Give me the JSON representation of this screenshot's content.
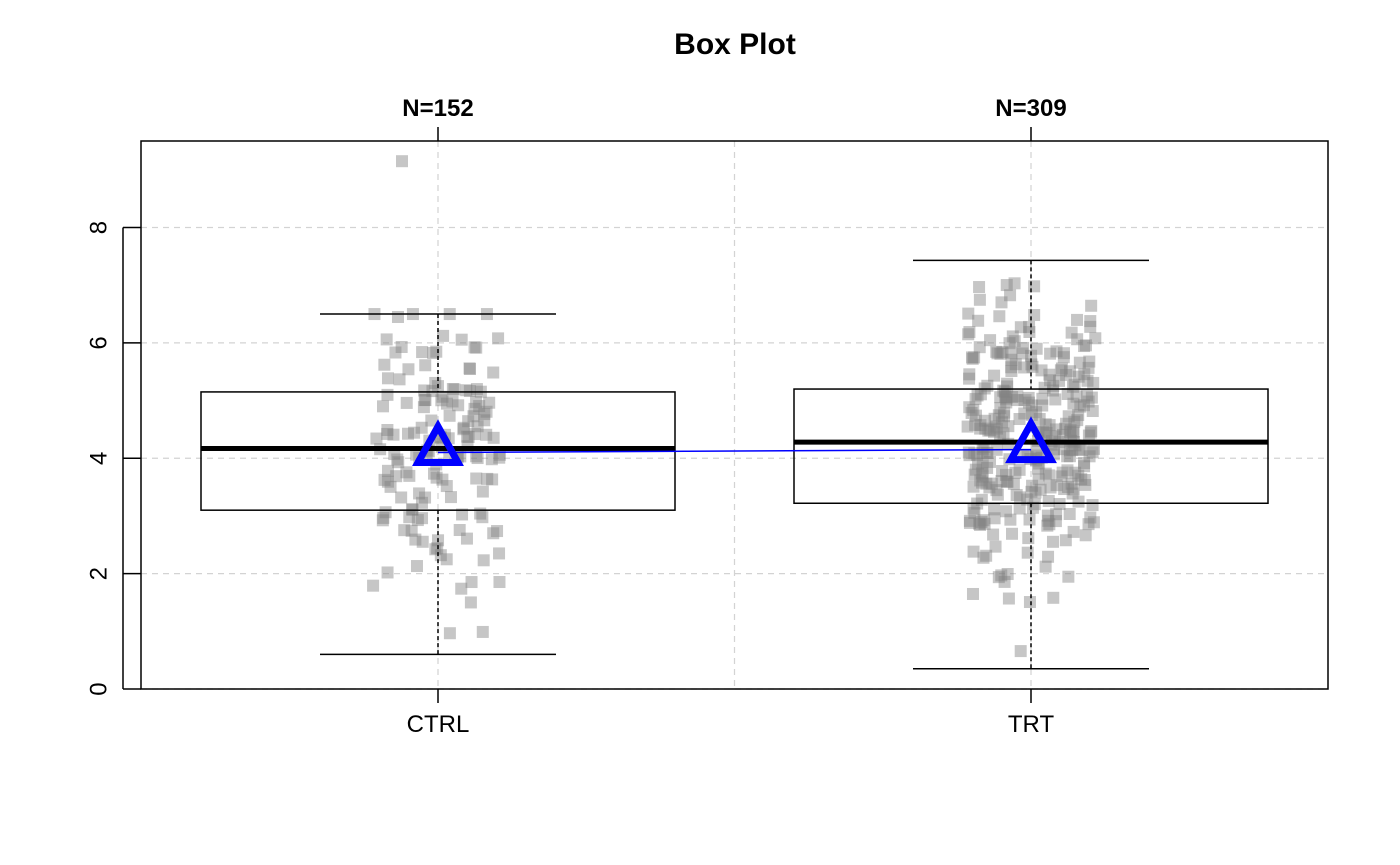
{
  "chart_data": {
    "type": "box",
    "title": "Box Plot",
    "xlabel": "",
    "ylabel": "",
    "ylim": [
      0,
      9.5
    ],
    "yticks": [
      0,
      2,
      4,
      6,
      8
    ],
    "grid": true,
    "categories": [
      "CTRL",
      "TRT"
    ],
    "counts": [
      "N=152",
      "N=309"
    ],
    "boxes": [
      {
        "category": "CTRL",
        "lower_whisker": 0.6,
        "q1": 3.1,
        "median": 4.17,
        "q3": 5.15,
        "upper_whisker": 6.5,
        "mean": 4.1
      },
      {
        "category": "TRT",
        "lower_whisker": 0.35,
        "q1": 3.22,
        "median": 4.28,
        "q3": 5.2,
        "upper_whisker": 7.43,
        "mean": 4.15
      }
    ],
    "outliers": [
      {
        "category": "CTRL",
        "values": [
          9.15
        ]
      }
    ],
    "mean_marker": "triangle",
    "colors": {
      "mean": "#0000ff",
      "points": "#808080",
      "box": "#000000",
      "grid": "#d3d3d3"
    }
  }
}
